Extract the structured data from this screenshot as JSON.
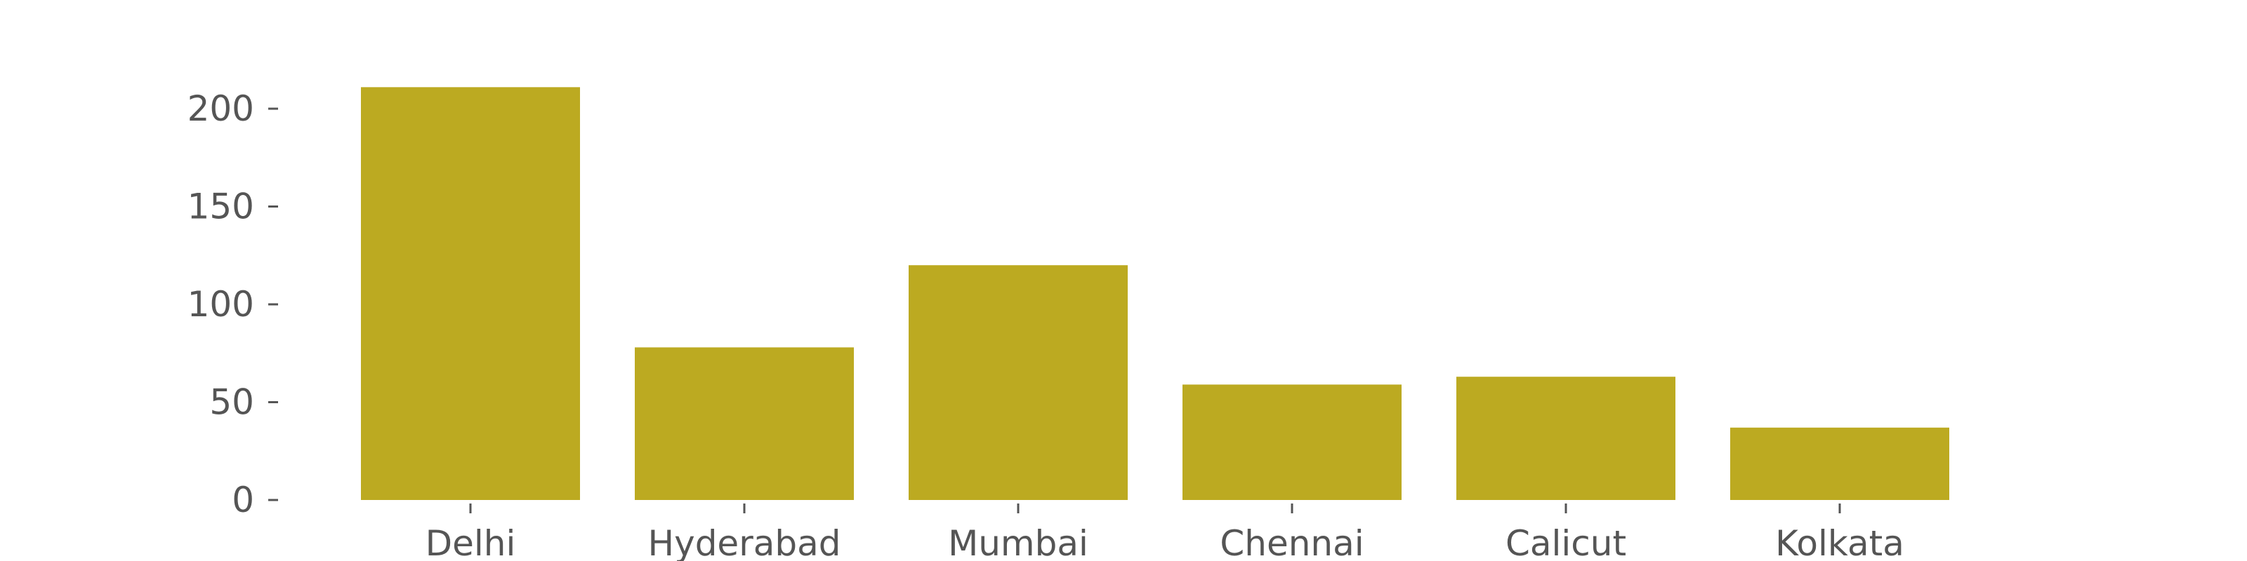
{
  "chart_data": {
    "type": "bar",
    "categories": [
      "Delhi",
      "Hyderabad",
      "Mumbai",
      "Chennai",
      "Calicut",
      "Kolkata"
    ],
    "values": [
      211,
      78,
      120,
      59,
      63,
      37
    ],
    "title": "",
    "xlabel": "",
    "ylabel": "",
    "ylim": [
      0,
      220
    ],
    "yticks": [
      0,
      50,
      100,
      150,
      200
    ],
    "grid": false,
    "bar_color": "#bcaa21",
    "text_color": "#555555",
    "tick_color": "#555555",
    "background": "#ffffff"
  }
}
